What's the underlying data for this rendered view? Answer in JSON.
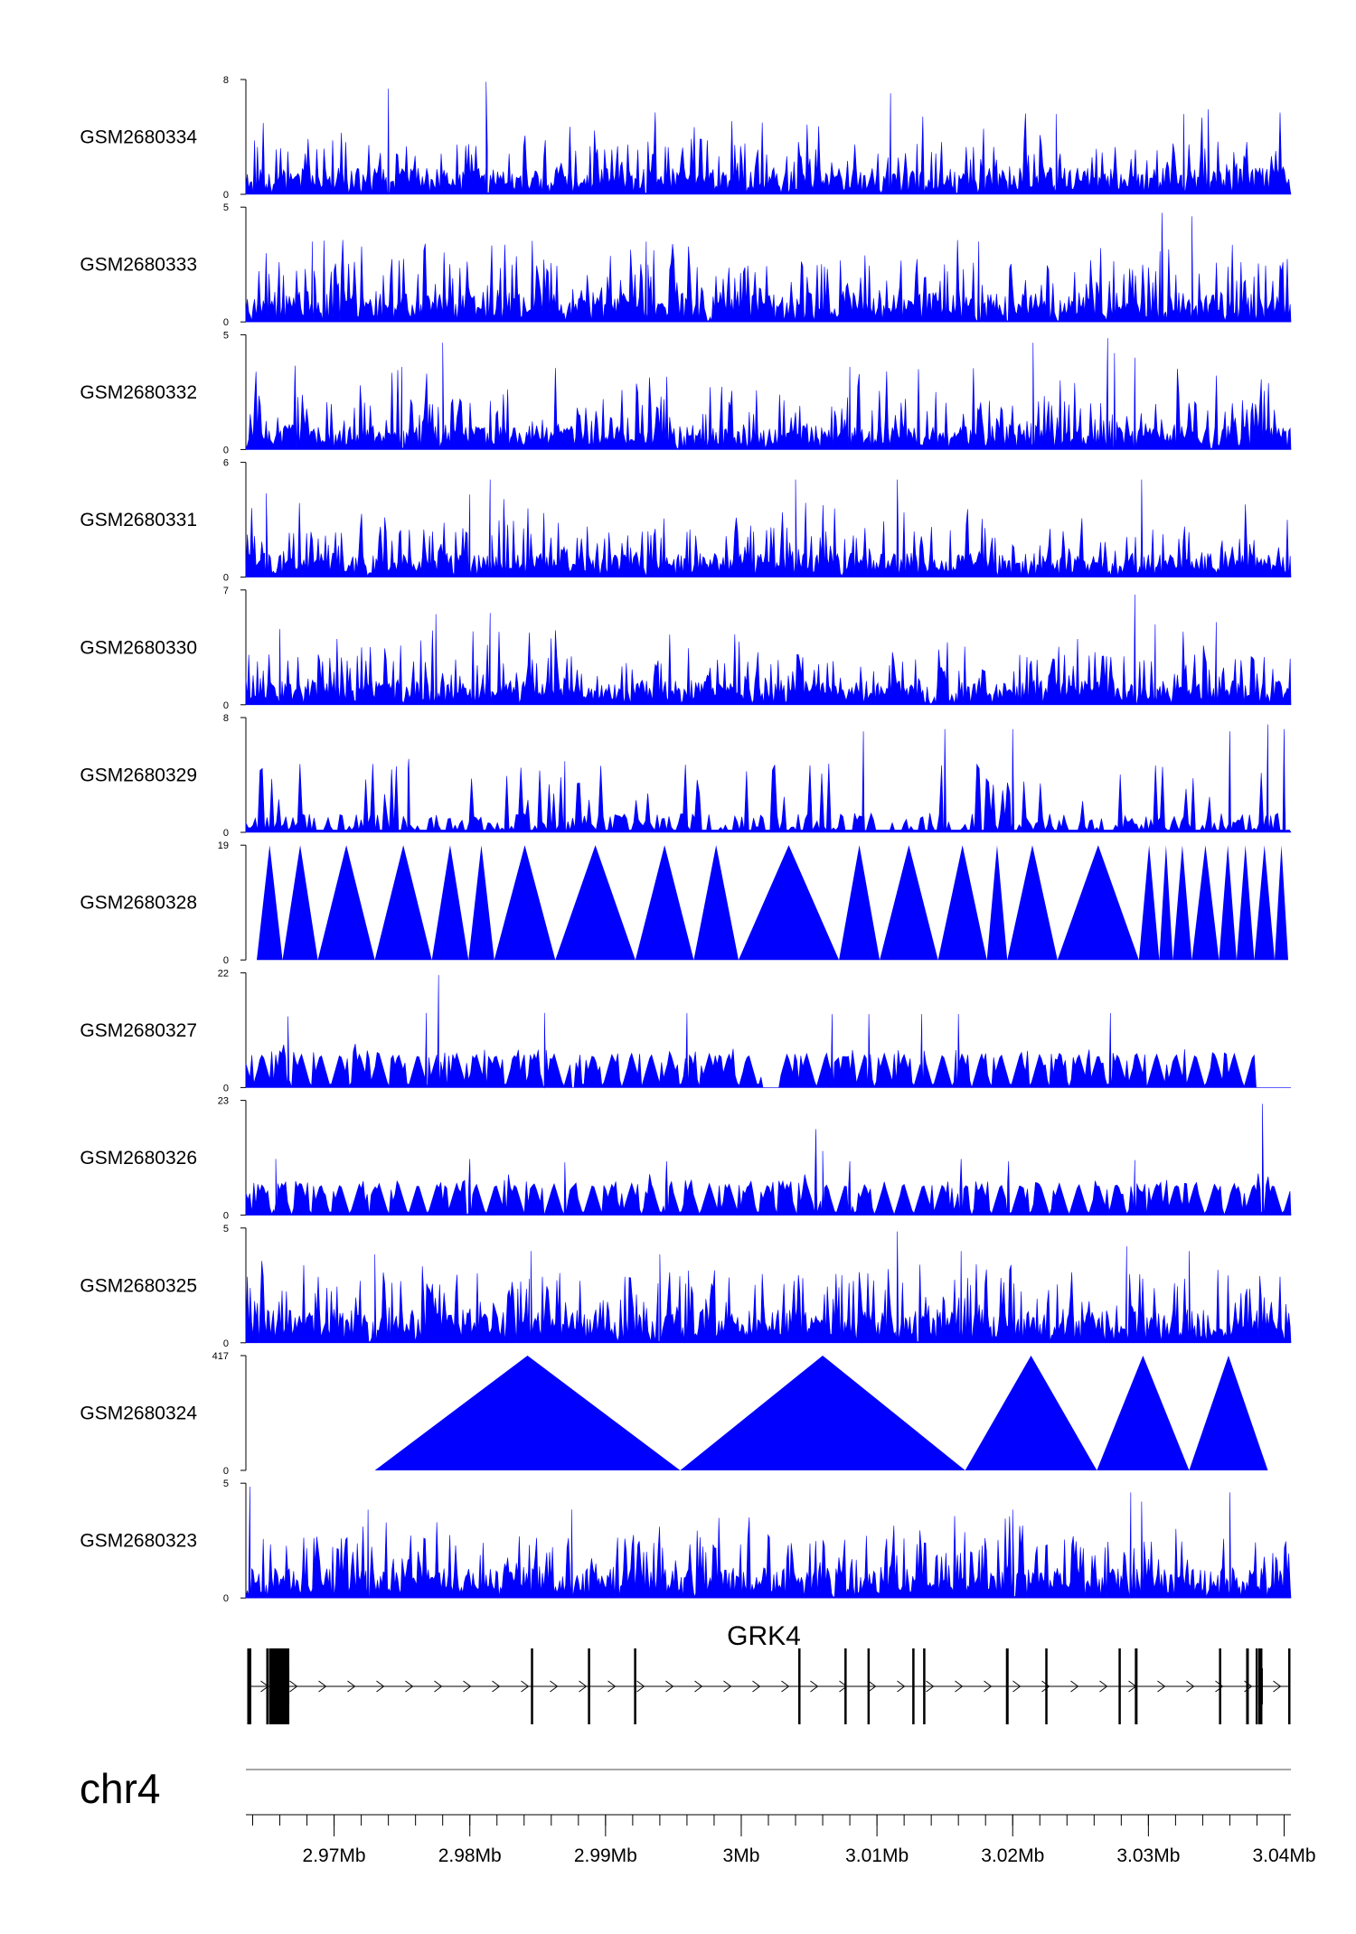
{
  "colors": {
    "signal": "#0000ff",
    "axis": "#000000",
    "gene": "#000000",
    "ideogram_line": "#888888",
    "background": "#ffffff"
  },
  "chart_data": {
    "type": "area",
    "description_type": "genome_browser_coverage_tracks",
    "x_range_mb": [
      2.9635,
      3.0405
    ],
    "tracks": [
      {
        "name": "GSM2680334",
        "ymax": 8,
        "ymin": 0,
        "pattern": "dense",
        "seed": 11,
        "base": 0.22,
        "spike": 0.55,
        "peaks": [
          [
            2.974,
            0.92
          ],
          [
            2.9812,
            0.98
          ],
          [
            3.011,
            0.88
          ],
          [
            3.0232,
            0.7
          ],
          [
            3.0326,
            0.7
          ],
          [
            3.0344,
            0.74
          ]
        ]
      },
      {
        "name": "GSM2680333",
        "ymax": 5,
        "ymin": 0,
        "pattern": "dense",
        "seed": 23,
        "base": 0.25,
        "spike": 0.55,
        "peaks": [
          [
            2.9684,
            0.7
          ],
          [
            2.993,
            0.7
          ],
          [
            3.031,
            0.95
          ],
          [
            3.0332,
            0.92
          ],
          [
            3.0175,
            0.7
          ]
        ]
      },
      {
        "name": "GSM2680332",
        "ymax": 5,
        "ymin": 0,
        "pattern": "dense",
        "seed": 37,
        "base": 0.2,
        "spike": 0.58,
        "peaks": [
          [
            2.975,
            0.72
          ],
          [
            2.978,
            0.93
          ],
          [
            3.0215,
            0.93
          ],
          [
            3.027,
            0.97
          ],
          [
            3.0275,
            0.84
          ],
          [
            3.029,
            0.8
          ],
          [
            3.008,
            0.72
          ]
        ]
      },
      {
        "name": "GSM2680331",
        "ymax": 6,
        "ymin": 0,
        "pattern": "dense",
        "seed": 41,
        "base": 0.2,
        "spike": 0.5,
        "peaks": [
          [
            2.965,
            0.73
          ],
          [
            2.98,
            0.72
          ],
          [
            2.9815,
            0.85
          ],
          [
            2.9825,
            0.68
          ],
          [
            3.004,
            0.85
          ],
          [
            3.0115,
            0.85
          ],
          [
            3.0295,
            0.85
          ]
        ]
      },
      {
        "name": "GSM2680330",
        "ymax": 7,
        "ymin": 0,
        "pattern": "dense",
        "seed": 53,
        "base": 0.2,
        "spike": 0.5,
        "peaks": [
          [
            2.966,
            0.66
          ],
          [
            2.9775,
            0.79
          ],
          [
            2.9815,
            0.8
          ],
          [
            3.029,
            0.96
          ],
          [
            3.0305,
            0.7
          ],
          [
            3.035,
            0.72
          ]
        ]
      },
      {
        "name": "GSM2680329",
        "ymax": 8,
        "ymin": 0,
        "pattern": "sparse",
        "seed": 67,
        "base": 0.12,
        "spike": 0.5,
        "peaks": [
          [
            3.009,
            0.88
          ],
          [
            3.015,
            0.9
          ],
          [
            3.02,
            0.9
          ],
          [
            3.036,
            0.88
          ],
          [
            3.0388,
            0.94
          ],
          [
            3.04,
            0.9
          ],
          [
            2.9755,
            0.64
          ],
          [
            2.987,
            0.62
          ]
        ]
      },
      {
        "name": "GSM2680328",
        "ymax": 19,
        "ymin": 0,
        "pattern": "triangles",
        "seed": 71,
        "triangles": [
          [
            2.9643,
            2.9662,
            1.0
          ],
          [
            2.9662,
            2.9688,
            1.0
          ],
          [
            2.9688,
            2.973,
            1.0
          ],
          [
            2.973,
            2.9772,
            1.0
          ],
          [
            2.9772,
            2.9799,
            1.0
          ],
          [
            2.9799,
            2.9818,
            1.0
          ],
          [
            2.9818,
            2.9863,
            1.0
          ],
          [
            2.9863,
            2.9922,
            1.0
          ],
          [
            2.9922,
            2.9965,
            1.0
          ],
          [
            2.9965,
            2.9998,
            1.0
          ],
          [
            2.9998,
            3.0072,
            1.0
          ],
          [
            3.0072,
            3.0102,
            1.0
          ],
          [
            3.0102,
            3.0145,
            1.0
          ],
          [
            3.0145,
            3.0181,
            1.0
          ],
          [
            3.0181,
            3.0196,
            1.0
          ],
          [
            3.0196,
            3.0233,
            1.0
          ],
          [
            3.0233,
            3.0293,
            1.0
          ],
          [
            3.0293,
            3.0308,
            1.0
          ],
          [
            3.0308,
            3.0318,
            1.0
          ],
          [
            3.0318,
            3.0332,
            1.0
          ],
          [
            3.0332,
            3.0352,
            1.0
          ],
          [
            3.0352,
            3.0365,
            1.0
          ],
          [
            3.0365,
            3.0378,
            1.0
          ],
          [
            3.0378,
            3.0393,
            1.0
          ],
          [
            3.0393,
            3.0403,
            1.0
          ]
        ]
      },
      {
        "name": "GSM2680327",
        "ymax": 22,
        "ymin": 0,
        "pattern": "mixed",
        "seed": 83,
        "base": 0.3,
        "spike": 0.3,
        "peaks": [
          [
            2.9666,
            0.62
          ],
          [
            2.9768,
            0.65
          ],
          [
            2.9777,
            0.98
          ],
          [
            2.9855,
            0.65
          ],
          [
            2.996,
            0.65
          ],
          [
            3.0067,
            0.64
          ],
          [
            3.0094,
            0.64
          ],
          [
            3.0133,
            0.64
          ],
          [
            3.016,
            0.64
          ],
          [
            3.0272,
            0.65
          ]
        ],
        "gaps": [
          [
            2.9874,
            2.9878
          ],
          [
            3.0015,
            3.0028
          ],
          [
            3.0378,
            3.0405
          ]
        ]
      },
      {
        "name": "GSM2680326",
        "ymax": 23,
        "ymin": 0,
        "pattern": "mixed",
        "seed": 97,
        "base": 0.28,
        "spike": 0.3,
        "peaks": [
          [
            2.9657,
            0.49
          ],
          [
            2.98,
            0.49
          ],
          [
            2.987,
            0.46
          ],
          [
            2.9945,
            0.47
          ],
          [
            3.0055,
            0.75
          ],
          [
            3.006,
            0.56
          ],
          [
            3.008,
            0.47
          ],
          [
            3.0162,
            0.49
          ],
          [
            3.0197,
            0.47
          ],
          [
            3.029,
            0.48
          ],
          [
            3.0384,
            0.97
          ]
        ]
      },
      {
        "name": "GSM2680325",
        "ymax": 5,
        "ymin": 0,
        "pattern": "dense",
        "seed": 101,
        "base": 0.28,
        "spike": 0.55,
        "peaks": [
          [
            2.973,
            0.77
          ],
          [
            2.9845,
            0.8
          ],
          [
            2.994,
            0.77
          ],
          [
            3.0115,
            0.97
          ],
          [
            3.0162,
            0.8
          ],
          [
            3.0284,
            0.84
          ],
          [
            3.033,
            0.8
          ]
        ]
      },
      {
        "name": "GSM2680324",
        "ymax": 417,
        "ymin": 0,
        "pattern": "triangles",
        "seed": 103,
        "triangles": [
          [
            2.973,
            2.9955,
            1.0
          ],
          [
            2.9955,
            3.0165,
            1.0
          ],
          [
            3.0165,
            3.0262,
            1.0
          ],
          [
            3.0262,
            3.033,
            1.0
          ],
          [
            3.033,
            3.0388,
            1.0
          ]
        ]
      },
      {
        "name": "GSM2680323",
        "ymax": 5,
        "ymin": 0,
        "pattern": "dense",
        "seed": 109,
        "base": 0.25,
        "spike": 0.55,
        "peaks": [
          [
            2.9638,
            0.97
          ],
          [
            2.9725,
            0.77
          ],
          [
            2.9875,
            0.77
          ],
          [
            3.02,
            0.77
          ],
          [
            3.0287,
            0.92
          ],
          [
            3.0295,
            0.84
          ],
          [
            3.036,
            0.92
          ]
        ]
      }
    ],
    "gene": {
      "name": "GRK4",
      "strand": "+",
      "start_mb": 2.9636,
      "end_mb": 3.0404,
      "exons": [
        [
          2.9636,
          2.9639
        ],
        [
          2.965,
          2.9651
        ],
        [
          2.9652,
          2.9667
        ],
        [
          2.9845,
          2.9846
        ],
        [
          2.9887,
          2.9888
        ],
        [
          2.9921,
          2.9922
        ],
        [
          3.0042,
          3.0043
        ],
        [
          3.0076,
          3.0077
        ],
        [
          3.0093,
          3.0094
        ],
        [
          3.0126,
          3.0127
        ],
        [
          3.0134,
          3.0135
        ],
        [
          3.0195,
          3.0197
        ],
        [
          3.0224,
          3.0225
        ],
        [
          3.0278,
          3.0279
        ],
        [
          3.029,
          3.0292
        ],
        [
          3.0352,
          3.0353
        ],
        [
          3.0372,
          3.0374
        ],
        [
          3.0379,
          3.038
        ],
        [
          3.0381,
          3.0384
        ],
        [
          3.0403,
          3.0404
        ]
      ],
      "thick_exons": [
        [
          2.9652,
          2.9667
        ],
        [
          3.0381,
          3.0384
        ]
      ]
    },
    "chromosome": "chr4",
    "axis": {
      "ticks_mb": [
        2.97,
        2.98,
        2.99,
        3.0,
        3.01,
        3.02,
        3.03,
        3.04
      ],
      "tick_labels": [
        "2.97Mb",
        "2.98Mb",
        "2.99Mb",
        "3Mb",
        "3.01Mb",
        "3.02Mb",
        "3.03Mb",
        "3.04Mb"
      ],
      "minor_step_mb": 0.002
    }
  }
}
